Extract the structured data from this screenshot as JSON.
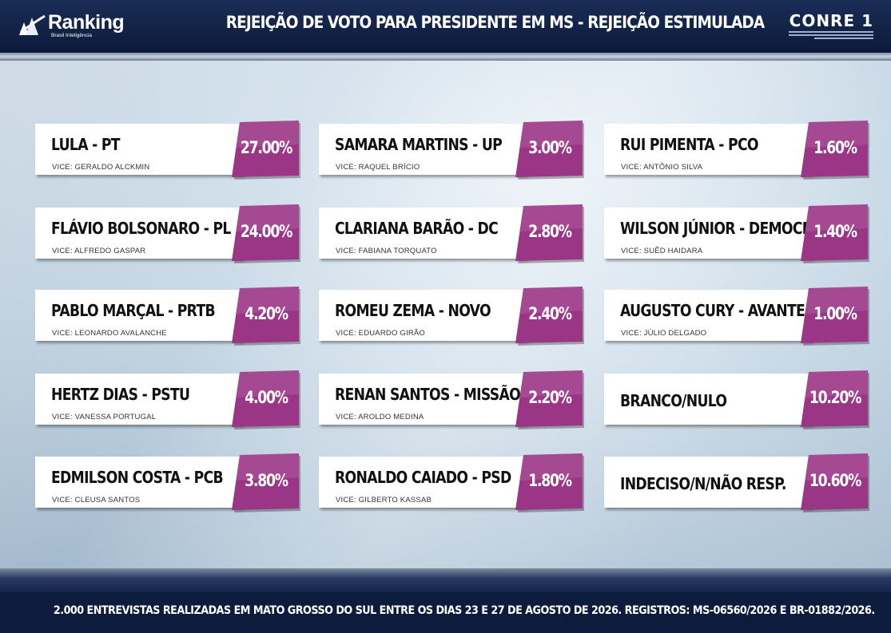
{
  "header": {
    "logo_text": "Ranking",
    "logo_subtitle": "Brasil Inteligência",
    "title": "REJEIÇÃO DE VOTO PARA PRESIDENTE EM MS - REJEIÇÃO ESTIMULADA",
    "conre_name": "CONRE 1"
  },
  "colors": {
    "header_bg": "#0c1a3a",
    "accent": "#9b3586",
    "card_bg": "#ffffff"
  },
  "chart_data": {
    "type": "table",
    "title": "REJEIÇÃO DE VOTO PARA PRESIDENTE EM MS - REJEIÇÃO ESTIMULADA",
    "rows": [
      {
        "name": "LULA - PT",
        "vice": "VICE: GERALDO ALCKMIN",
        "value": 27.0,
        "label": "27.00%"
      },
      {
        "name": "FLÁVIO BOLSONARO - PL",
        "vice": "VICE: ALFREDO GASPAR",
        "value": 24.0,
        "label": "24.00%"
      },
      {
        "name": "PABLO MARÇAL - PRTB",
        "vice": "VICE: LEONARDO AVALANCHE",
        "value": 4.2,
        "label": "4.20%"
      },
      {
        "name": "HERTZ DIAS - PSTU",
        "vice": "VICE: VANESSA PORTUGAL",
        "value": 4.0,
        "label": "4.00%"
      },
      {
        "name": "EDMILSON COSTA - PCB",
        "vice": "VICE: CLEUSA SANTOS",
        "value": 3.8,
        "label": "3.80%"
      },
      {
        "name": "SAMARA MARTINS - UP",
        "vice": "VICE: RAQUEL BRÍCIO",
        "value": 3.0,
        "label": "3.00%"
      },
      {
        "name": "CLARIANA BARÃO - DC",
        "vice": "VICE: FABIANA TORQUATO",
        "value": 2.8,
        "label": "2.80%"
      },
      {
        "name": "ROMEU ZEMA - NOVO",
        "vice": "VICE: EDUARDO GIRÃO",
        "value": 2.4,
        "label": "2.40%"
      },
      {
        "name": "RENAN SANTOS - MISSÃO",
        "vice": "VICE: AROLDO MEDINA",
        "value": 2.2,
        "label": "2.20%"
      },
      {
        "name": "RONALDO CAIADO - PSD",
        "vice": "VICE: GILBERTO KASSAB",
        "value": 1.8,
        "label": "1.80%"
      },
      {
        "name": "RUI PIMENTA - PCO",
        "vice": "VICE: ANTÔNIO SILVA",
        "value": 1.6,
        "label": "1.60%"
      },
      {
        "name": "WILSON JÚNIOR - DEMOCRATA",
        "vice": "VICE: SUÊD HAIDARA",
        "value": 1.4,
        "label": "1.40%"
      },
      {
        "name": "AUGUSTO CURY - AVANTE",
        "vice": "VICE: JÚLIO DELGADO",
        "value": 1.0,
        "label": "1.00%"
      },
      {
        "name": "BRANCO/NULO",
        "vice": "",
        "value": 10.2,
        "label": "10.20%"
      },
      {
        "name": "INDECISO/N/NÃO RESP.",
        "vice": "",
        "value": 10.6,
        "label": "10.60%"
      }
    ]
  },
  "footer": {
    "note": "2.000 ENTREVISTAS REALIZADAS EM MATO GROSSO DO SUL ENTRE OS DIAS 23 E 27 DE AGOSTO DE 2026. REGISTROS: MS-06560/2026 E BR-01882/2026."
  }
}
